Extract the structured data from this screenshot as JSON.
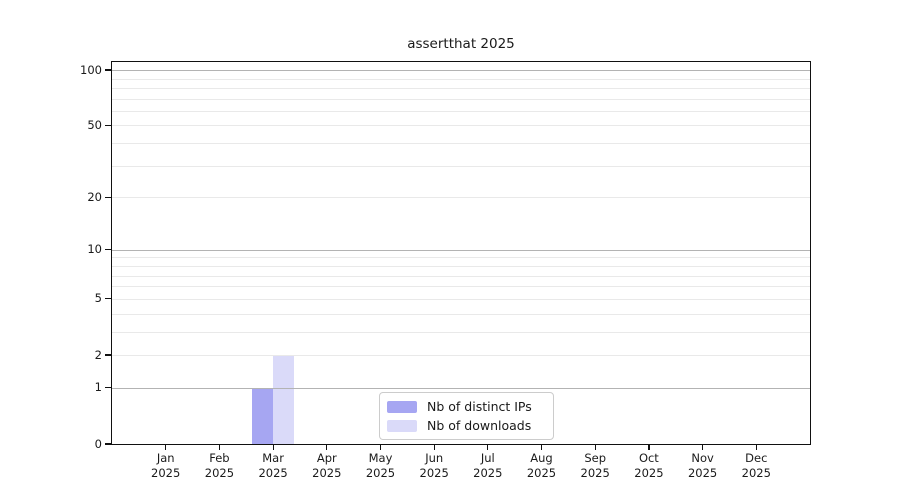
{
  "chart_data": {
    "type": "bar",
    "title": "assertthat 2025",
    "categories": [
      "Jan",
      "Feb",
      "Mar",
      "Apr",
      "May",
      "Jun",
      "Jul",
      "Aug",
      "Sep",
      "Oct",
      "Nov",
      "Dec"
    ],
    "year_label": "2025",
    "series": [
      {
        "name": "Nb of distinct IPs",
        "color": "#a6a6f2",
        "values": [
          0,
          0,
          1,
          0,
          0,
          0,
          0,
          0,
          0,
          0,
          0,
          0
        ]
      },
      {
        "name": "Nb of downloads",
        "color": "#dadaf9",
        "values": [
          0,
          0,
          2,
          0,
          0,
          0,
          0,
          0,
          0,
          0,
          0,
          0
        ]
      }
    ],
    "yscale": "log1p",
    "ylim": [
      0,
      110.5
    ],
    "yticks": [
      0,
      1,
      2,
      5,
      10,
      20,
      50,
      100
    ],
    "grid": {
      "major_values": [
        1,
        10,
        100
      ],
      "minor_values": [
        2,
        3,
        4,
        5,
        6,
        7,
        8,
        9,
        20,
        30,
        40,
        50,
        60,
        70,
        80,
        90
      ],
      "major_color": "#b3b3b3",
      "minor_color": "#e9e9e9"
    },
    "legend": {
      "position": "lower-center"
    }
  },
  "colors": {
    "background": "#ffffff",
    "spine": "#111111",
    "text": "#1a1a1a"
  }
}
